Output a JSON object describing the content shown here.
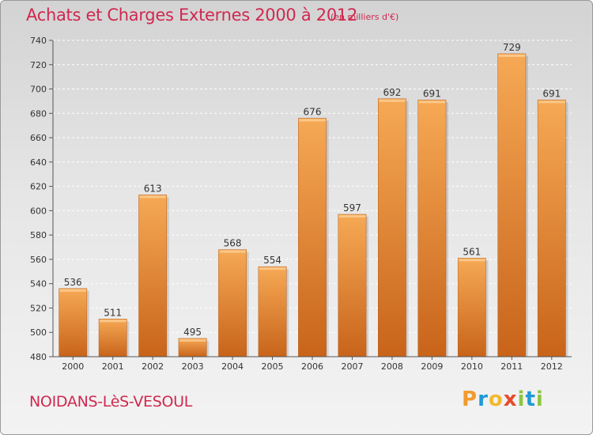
{
  "title": "Achats et Charges Externes 2000 à 2012",
  "subtitle": "(en milliers d'€)",
  "commune": "NOIDANS-LèS-VESOUL",
  "logo": {
    "letters": [
      "P",
      "r",
      "o",
      "x",
      "i",
      "t",
      "i"
    ],
    "colors": [
      "#f29a2e",
      "#1f9ad6",
      "#f2b82e",
      "#e84a2b",
      "#8cc63f",
      "#1f9ad6",
      "#8cc63f"
    ]
  },
  "chart_data": {
    "type": "bar",
    "title": "Achats et Charges Externes 2000 à 2012",
    "categories": [
      "2000",
      "2001",
      "2002",
      "2003",
      "2004",
      "2005",
      "2006",
      "2007",
      "2008",
      "2009",
      "2010",
      "2011",
      "2012"
    ],
    "values": [
      536,
      511,
      613,
      495,
      568,
      554,
      676,
      597,
      692,
      691,
      561,
      729,
      691
    ],
    "ylim": [
      480,
      740
    ],
    "yticks": [
      480,
      500,
      520,
      540,
      560,
      580,
      600,
      620,
      640,
      660,
      680,
      700,
      720,
      740
    ],
    "grid": true,
    "bar_color_light": "#f6a955",
    "bar_color_dark": "#c8641a"
  }
}
